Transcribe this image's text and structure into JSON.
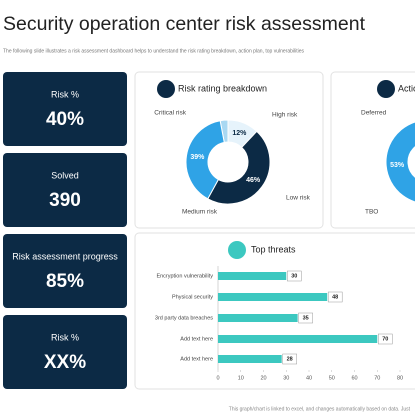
{
  "header": {
    "title": "Security operation center risk assessment",
    "subtitle": "The following slide illustrates a risk assessment dashboard helps to understand the risk rating breakdown, action plan, top vulnerabilities"
  },
  "cards": [
    {
      "label": "Risk %",
      "value": "40%"
    },
    {
      "label": "Solved",
      "value": "390"
    },
    {
      "label": "Risk assessment progress",
      "value": "85%"
    },
    {
      "label": "Risk %",
      "value": "XX%"
    }
  ],
  "chart_data": [
    {
      "type": "donut",
      "title": "Risk rating breakdown",
      "categories": [
        "Critical risk",
        "High risk",
        "Low risk",
        "Medium risk"
      ],
      "values": [
        3,
        12,
        46,
        39
      ],
      "value_labels": [
        null,
        "12%",
        "46%",
        "39%"
      ],
      "colors": [
        "#a9d8f2",
        "#e6f3fb",
        "#0c2a45",
        "#2fa3e6"
      ]
    },
    {
      "type": "donut",
      "title": "Action plan",
      "categories": [
        "Deferred",
        "TBO"
      ],
      "values": [
        47,
        53
      ],
      "value_labels": [
        null,
        "53%"
      ],
      "colors": [
        "#0c2a45",
        "#2fa3e6"
      ]
    },
    {
      "type": "bar",
      "title": "Top threats",
      "categories": [
        "Encryption vulnerability",
        "Physical security",
        "3rd party data breaches",
        "Add text here",
        "Add text here"
      ],
      "values": [
        30,
        48,
        35,
        70,
        28
      ],
      "color": "#3cc8c0",
      "xlim": [
        0,
        80
      ],
      "xticks": [
        0,
        10,
        20,
        30,
        40,
        50,
        60,
        70,
        80
      ]
    }
  ],
  "footer": "This graph/chart is linked to excel, and changes automatically based on data. Just"
}
